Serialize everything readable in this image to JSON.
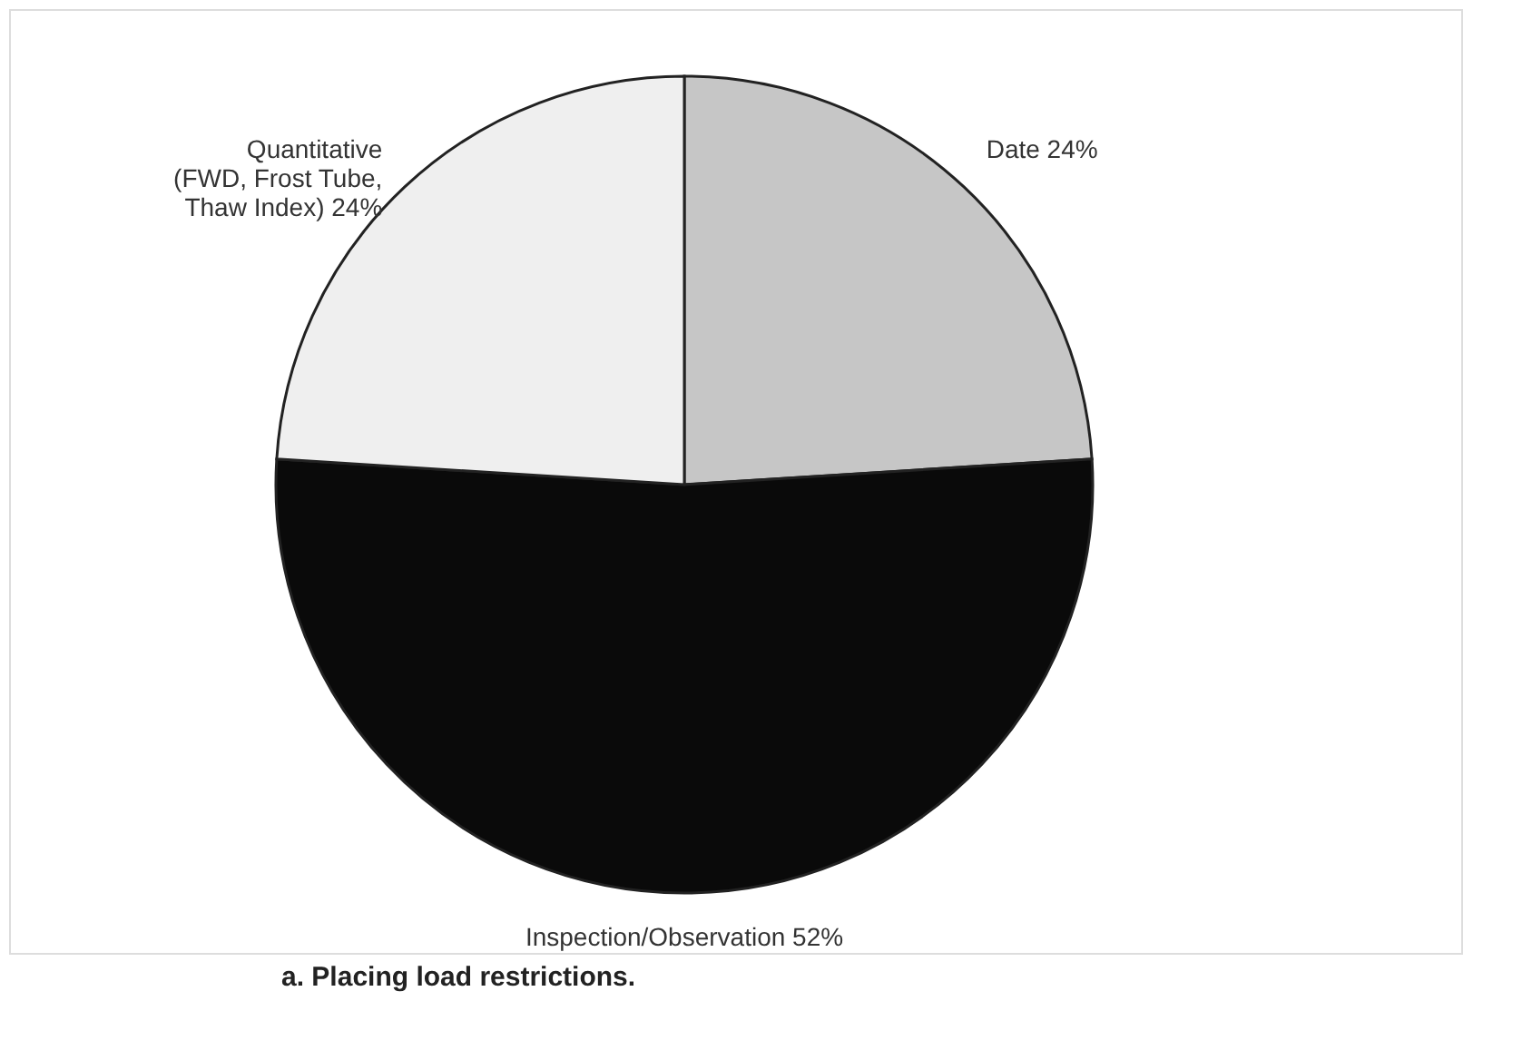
{
  "chart_data": {
    "type": "pie",
    "title": "a. Placing load restrictions.",
    "categories": [
      "Date",
      "Inspection/Observation",
      "Quantitative\n(FWD, Frost Tube,\nThaw Index)"
    ],
    "values": [
      24,
      52,
      24
    ],
    "value_labels": [
      "24%",
      "52%",
      "24%"
    ],
    "colors": [
      "#c6c6c6",
      "#0a0a0a",
      "#efefef"
    ]
  }
}
